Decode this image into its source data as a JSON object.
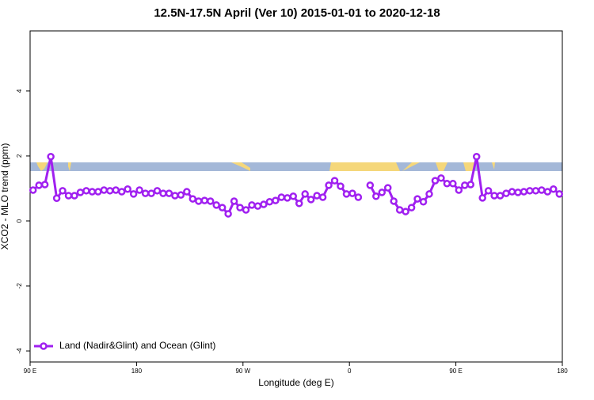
{
  "chart_data": {
    "type": "line",
    "title": "12.5N-17.5N April (Ver 10)   2015-01-01 to 2020-12-18",
    "xlabel": "Longitude (deg E)",
    "ylabel": "XCO2 - MLO trend (ppm)",
    "xlim": [
      90,
      540
    ],
    "ylim": [
      -4.34,
      5.85
    ],
    "xticks": [
      {
        "value": 90,
        "label": "90 E"
      },
      180,
      {
        "value": 270,
        "label": "90 W"
      },
      {
        "value": 360,
        "label": "0"
      },
      {
        "value": 450,
        "label": "90 E"
      },
      {
        "value": 540,
        "label": "180"
      }
    ],
    "yticks": [
      -4,
      -2,
      0,
      2,
      4
    ],
    "legend": "bottom-left",
    "x": [
      92.5,
      97.5,
      102.5,
      107.5,
      112.5,
      117.5,
      122.5,
      127.5,
      132.5,
      137.5,
      142.5,
      147.5,
      152.5,
      157.5,
      162.5,
      167.5,
      172.5,
      177.5,
      182.5,
      187.5,
      192.5,
      197.5,
      202.5,
      207.5,
      212.5,
      217.5,
      222.5,
      227.5,
      232.5,
      237.5,
      242.5,
      247.5,
      252.5,
      257.5,
      262.5,
      267.5,
      272.5,
      277.5,
      282.5,
      287.5,
      292.5,
      297.5,
      302.5,
      307.5,
      312.5,
      317.5,
      322.5,
      327.5,
      332.5,
      337.5,
      342.5,
      347.5,
      352.5,
      357.5,
      362.5,
      367.5,
      372.5,
      377.5,
      382.5,
      387.5,
      392.5,
      397.5,
      402.5,
      407.5,
      412.5,
      417.5,
      422.5,
      427.5,
      432.5,
      437.5,
      442.5,
      447.5,
      452.5,
      457.5,
      462.5,
      467.5,
      472.5,
      477.5,
      482.5,
      487.5,
      492.5,
      497.5,
      502.5,
      507.5,
      512.5,
      517.5,
      522.5,
      527.5,
      532.5,
      537.5
    ],
    "series": [
      {
        "name": "Land (Nadir&Glint) and Ocean (Glint)",
        "color": "#a020f0",
        "values": [
          0.95,
          1.1,
          1.12,
          1.98,
          0.7,
          0.93,
          0.78,
          0.78,
          0.88,
          0.93,
          0.9,
          0.9,
          0.95,
          0.93,
          0.95,
          0.9,
          0.98,
          0.83,
          0.95,
          0.85,
          0.85,
          0.93,
          0.85,
          0.85,
          0.78,
          0.8,
          0.9,
          0.68,
          0.61,
          0.63,
          0.61,
          0.49,
          0.41,
          0.22,
          0.61,
          0.41,
          0.34,
          0.49,
          0.46,
          0.51,
          0.59,
          0.63,
          0.73,
          0.71,
          0.76,
          0.54,
          0.83,
          0.66,
          0.78,
          0.73,
          1.1,
          1.24,
          1.07,
          0.83,
          0.85,
          0.73,
          null,
          1.1,
          0.76,
          0.88,
          1.02,
          0.61,
          0.34,
          0.29,
          0.41,
          0.68,
          0.59,
          0.83,
          1.24,
          1.32,
          1.15,
          1.15,
          0.95,
          1.1,
          1.12,
          1.98,
          0.71,
          0.93,
          0.78,
          0.78,
          0.85,
          0.9,
          0.88,
          0.9,
          0.93,
          0.93,
          0.95,
          0.9,
          0.98,
          0.83
        ]
      }
    ]
  }
}
